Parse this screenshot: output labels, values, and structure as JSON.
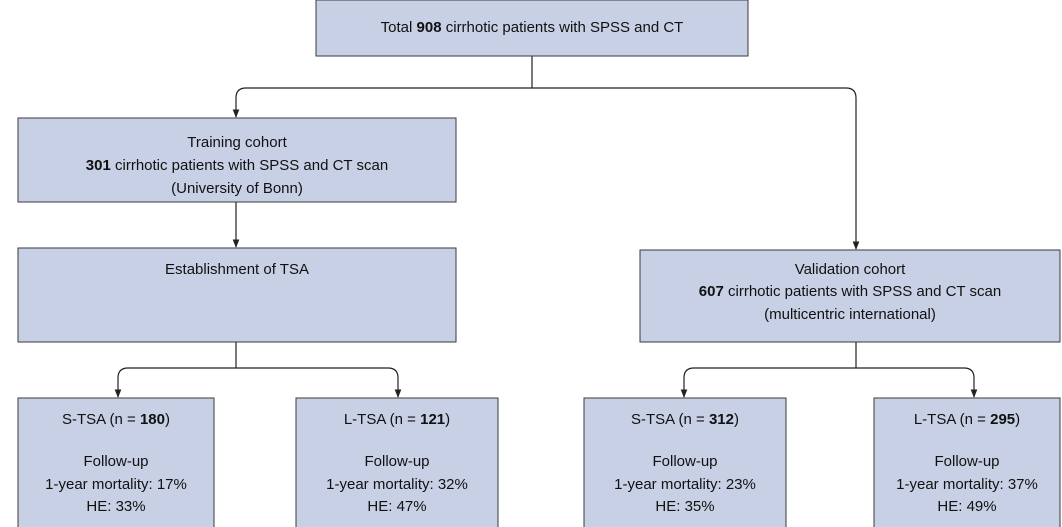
{
  "nodes": [
    {
      "lines": [
        [
          "Total ",
          "908",
          " cirrhotic patients with SPSS and CT"
        ]
      ]
    },
    {
      "lines": [
        "Training cohort",
        [
          "",
          "301",
          " cirrhotic patients with SPSS and CT scan"
        ],
        "(University of Bonn)"
      ]
    },
    {
      "lines": [
        "Establishment of TSA"
      ]
    },
    {
      "lines": [
        "Validation cohort",
        [
          "",
          "607",
          " cirrhotic patients with SPSS and CT scan"
        ],
        "(multicentric international)"
      ]
    },
    {
      "lines": [
        [
          "S-TSA (n = ",
          "180",
          ")"
        ],
        "Follow-up",
        "1-year mortality: 17%",
        "HE: 33%"
      ]
    },
    {
      "lines": [
        [
          "L-TSA (n = ",
          "121",
          ")"
        ],
        "Follow-up",
        "1-year mortality: 32%",
        "HE: 47%"
      ]
    },
    {
      "lines": [
        [
          "S-TSA (n = ",
          "312",
          ")"
        ],
        "Follow-up",
        "1-year mortality: 23%",
        "HE: 35%"
      ]
    },
    {
      "lines": [
        [
          "L-TSA (n = ",
          "295",
          ")"
        ],
        "Follow-up",
        "1-year mortality: 37%",
        "HE: 49%"
      ]
    }
  ]
}
